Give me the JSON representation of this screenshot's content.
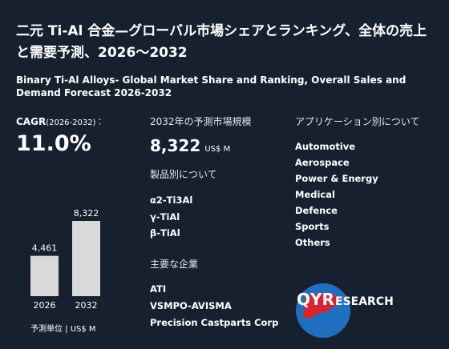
{
  "header": {
    "title": "二元 Ti-Al 合金—グローバル市場シェアとランキング、全体の売上と需要予測、2026～2032",
    "subtitle": "Binary Ti-Al Alloys- Global Market Share and Ranking, Overall Sales and Demand Forecast 2026-2032"
  },
  "cagr": {
    "label": "CAGR",
    "period": "(2026-2032)：",
    "value": "11.0%"
  },
  "chart_data": {
    "type": "bar",
    "categories": [
      "2026",
      "2032"
    ],
    "values": [
      4461,
      8322
    ],
    "value_labels": [
      "4,461",
      "8,322"
    ],
    "color": "#d9d9d9",
    "unit_note": "予測単位 | US$ M"
  },
  "market_size": {
    "label": "2032年の予測市場規模",
    "value": "8,322",
    "unit": "US$ M"
  },
  "products": {
    "heading": "製品別について",
    "items": [
      "α2-Ti3Al",
      "γ-TiAl",
      "β-TiAl"
    ]
  },
  "companies": {
    "heading": "主要な企業",
    "items": [
      "ATI",
      "VSMPO-AVISMA",
      "Precision Castparts Corp"
    ]
  },
  "applications": {
    "heading": "アプリケーション別について",
    "items": [
      "Automotive",
      "Aerospace",
      "Power & Energy",
      "Medical",
      "Defence",
      "Sports",
      "Others"
    ]
  },
  "logo": {
    "brand": "QYR",
    "rest": "ESEARCH"
  }
}
